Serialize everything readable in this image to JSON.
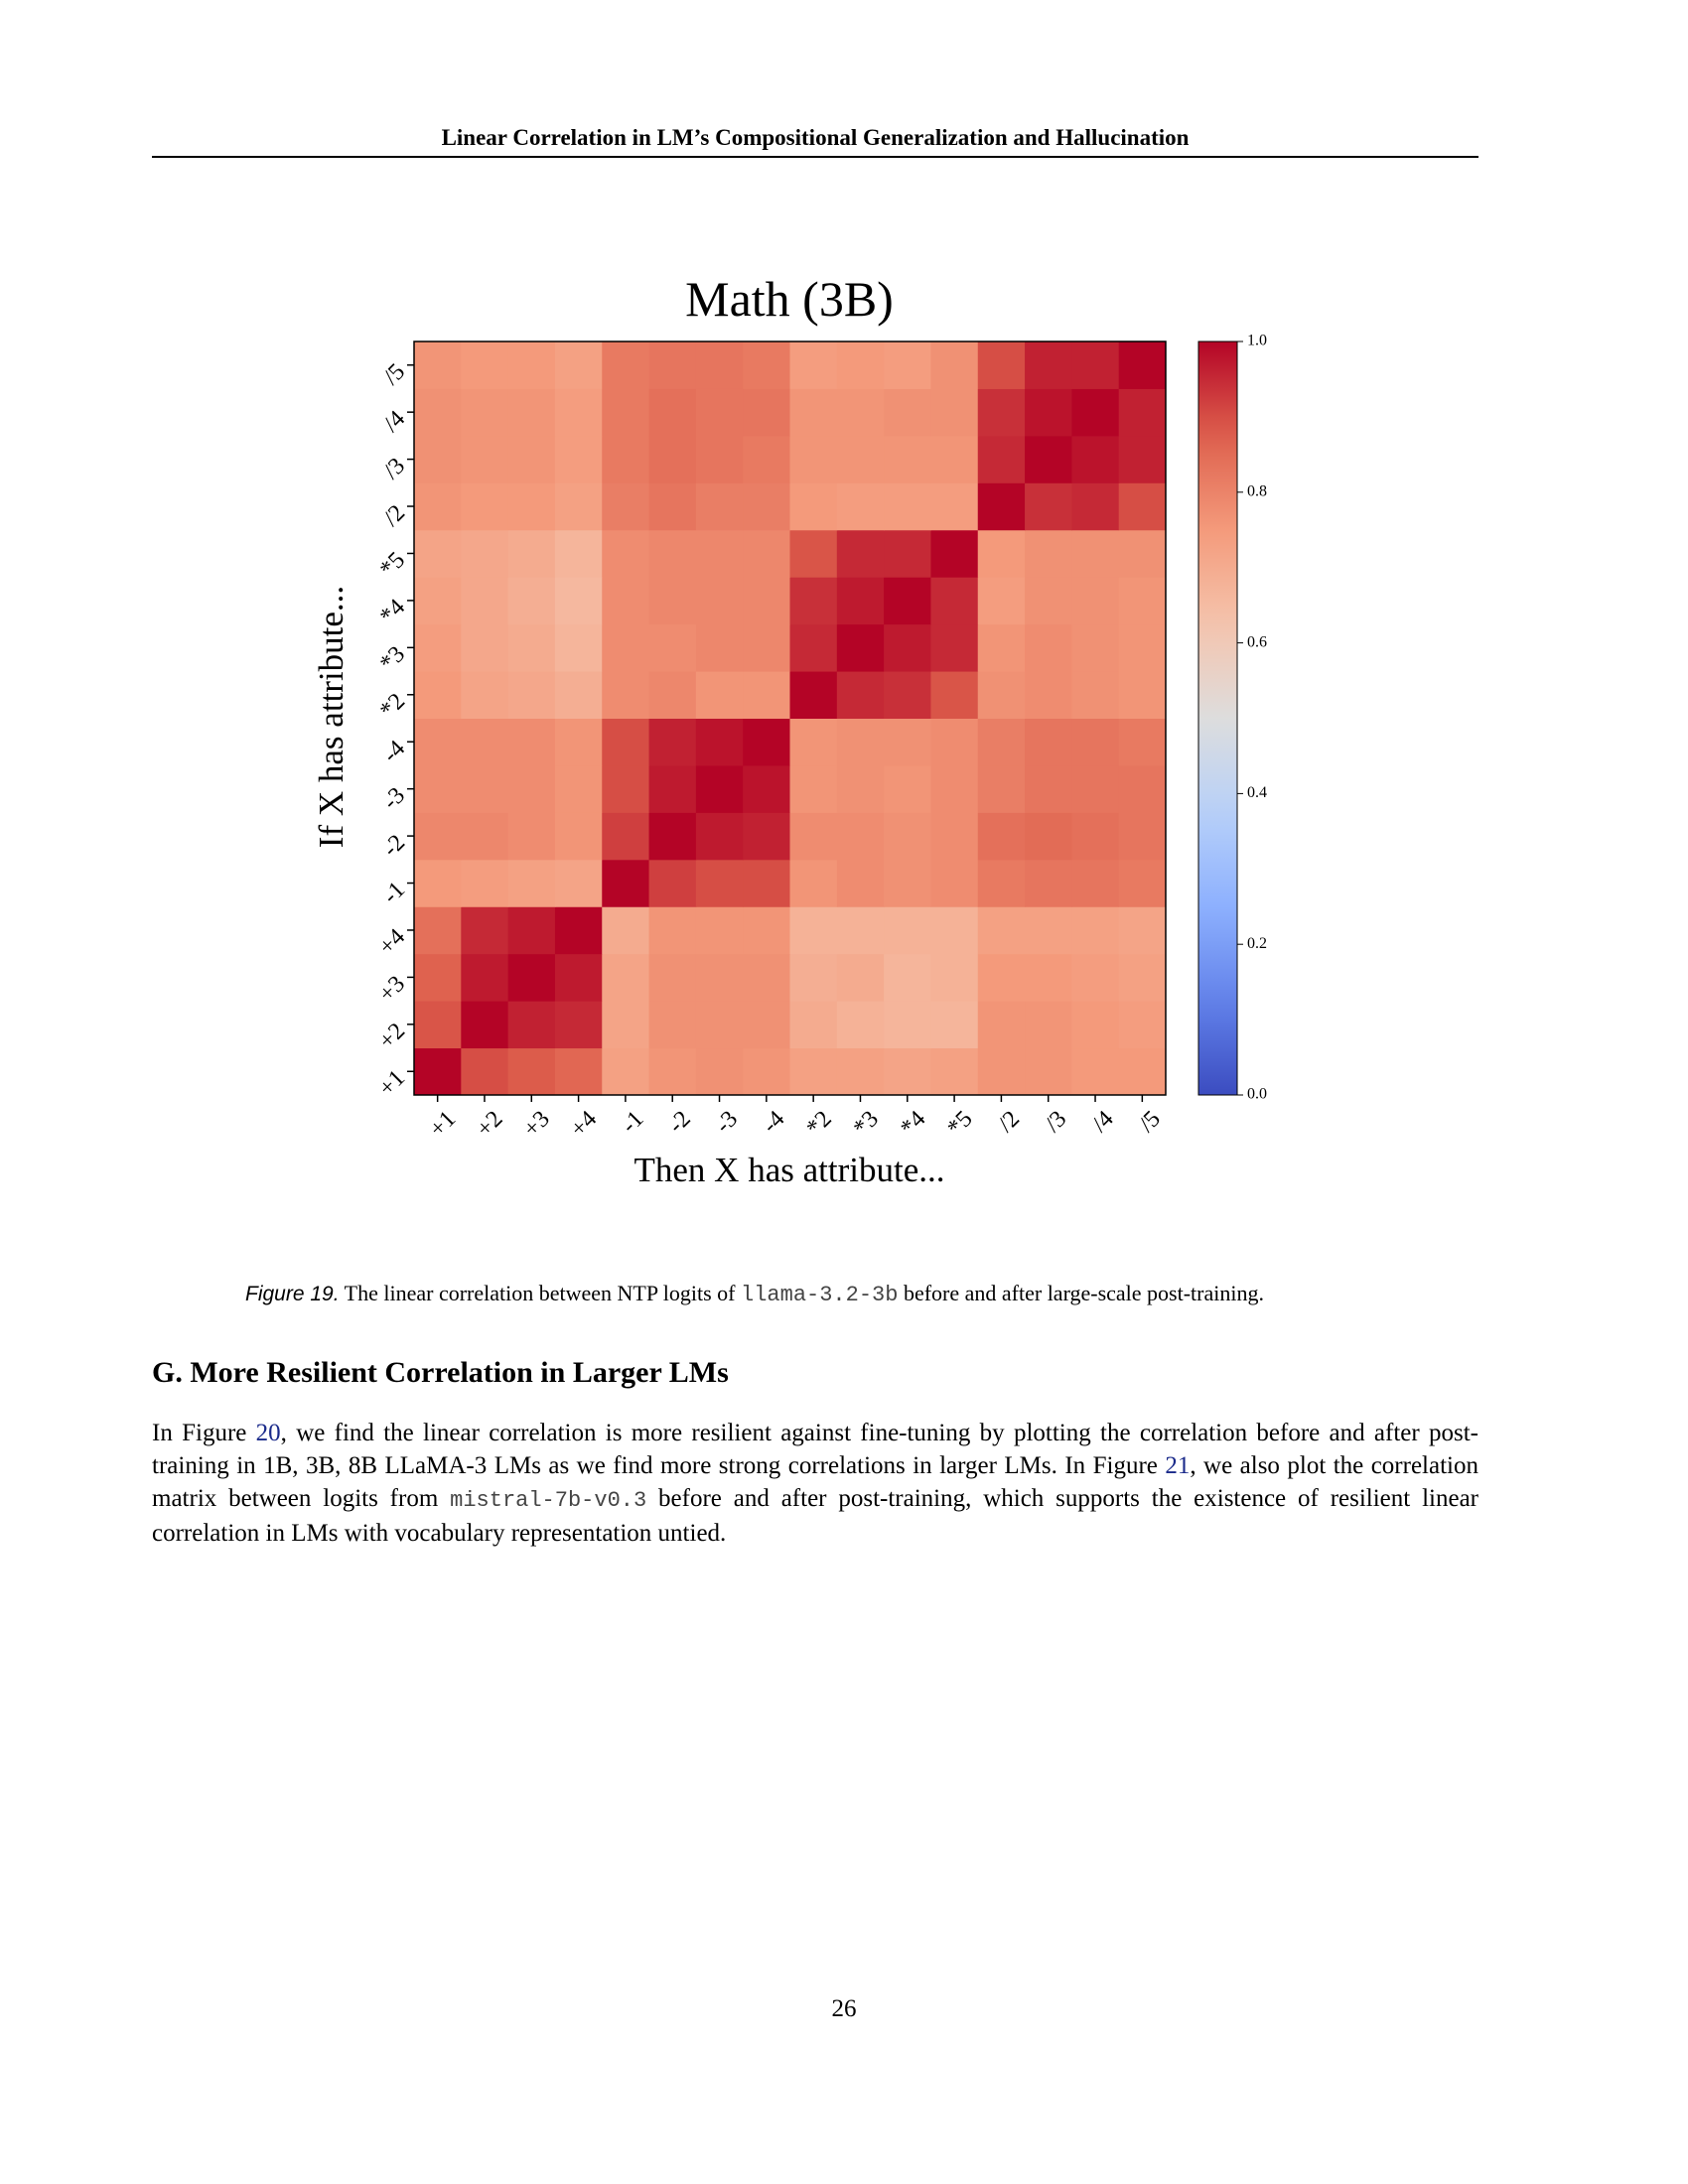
{
  "header": {
    "title": "Linear Correlation in LM’s Compositional Generalization and Hallucination"
  },
  "chart_data": {
    "type": "heatmap",
    "title": "Math (3B)",
    "x_label": "Then X has attribute...",
    "y_label": "If X has attribute...",
    "categories": [
      "+1",
      "+2",
      "+3",
      "+4",
      "-1",
      "-2",
      "-3",
      "-4",
      "*2",
      "*3",
      "*4",
      "*5",
      "/2",
      "/3",
      "/4",
      "/5"
    ],
    "y_categories": [
      "+1",
      "+2",
      "+3",
      "+4",
      "-1",
      "-2",
      "-3",
      "-4",
      "*2",
      "*3",
      "*4",
      "*5",
      "/2",
      "/3",
      "/4",
      "/5"
    ],
    "values": [
      [
        1.0,
        0.9,
        0.88,
        0.86,
        0.73,
        0.76,
        0.77,
        0.76,
        0.73,
        0.73,
        0.72,
        0.73,
        0.76,
        0.76,
        0.75,
        0.75
      ],
      [
        0.89,
        1.0,
        0.96,
        0.95,
        0.72,
        0.77,
        0.77,
        0.77,
        0.7,
        0.68,
        0.67,
        0.67,
        0.76,
        0.76,
        0.75,
        0.74
      ],
      [
        0.87,
        0.97,
        1.0,
        0.97,
        0.72,
        0.77,
        0.77,
        0.77,
        0.69,
        0.7,
        0.67,
        0.68,
        0.75,
        0.75,
        0.74,
        0.73
      ],
      [
        0.84,
        0.95,
        0.97,
        1.0,
        0.7,
        0.76,
        0.76,
        0.76,
        0.68,
        0.68,
        0.68,
        0.68,
        0.73,
        0.73,
        0.73,
        0.72
      ],
      [
        0.75,
        0.74,
        0.73,
        0.72,
        1.0,
        0.92,
        0.9,
        0.9,
        0.76,
        0.78,
        0.77,
        0.78,
        0.82,
        0.83,
        0.83,
        0.82
      ],
      [
        0.79,
        0.79,
        0.78,
        0.76,
        0.92,
        1.0,
        0.97,
        0.96,
        0.78,
        0.78,
        0.77,
        0.78,
        0.84,
        0.85,
        0.84,
        0.83
      ],
      [
        0.78,
        0.78,
        0.78,
        0.76,
        0.9,
        0.97,
        1.0,
        0.98,
        0.76,
        0.77,
        0.76,
        0.78,
        0.81,
        0.83,
        0.83,
        0.83
      ],
      [
        0.78,
        0.78,
        0.78,
        0.76,
        0.9,
        0.96,
        0.98,
        1.0,
        0.76,
        0.77,
        0.77,
        0.78,
        0.81,
        0.83,
        0.83,
        0.82
      ],
      [
        0.75,
        0.72,
        0.71,
        0.69,
        0.78,
        0.79,
        0.76,
        0.76,
        1.0,
        0.95,
        0.94,
        0.89,
        0.77,
        0.78,
        0.77,
        0.76
      ],
      [
        0.74,
        0.71,
        0.7,
        0.67,
        0.78,
        0.78,
        0.79,
        0.79,
        0.95,
        1.0,
        0.97,
        0.95,
        0.76,
        0.78,
        0.77,
        0.76
      ],
      [
        0.73,
        0.71,
        0.69,
        0.66,
        0.78,
        0.79,
        0.79,
        0.79,
        0.94,
        0.97,
        1.0,
        0.95,
        0.74,
        0.77,
        0.77,
        0.76
      ],
      [
        0.72,
        0.71,
        0.7,
        0.67,
        0.78,
        0.79,
        0.79,
        0.79,
        0.89,
        0.95,
        0.95,
        1.0,
        0.75,
        0.77,
        0.77,
        0.77
      ],
      [
        0.76,
        0.75,
        0.75,
        0.73,
        0.81,
        0.83,
        0.81,
        0.81,
        0.75,
        0.74,
        0.74,
        0.74,
        1.0,
        0.94,
        0.95,
        0.9
      ],
      [
        0.77,
        0.76,
        0.76,
        0.74,
        0.82,
        0.84,
        0.83,
        0.82,
        0.76,
        0.76,
        0.76,
        0.76,
        0.95,
        1.0,
        0.98,
        0.96
      ],
      [
        0.77,
        0.76,
        0.76,
        0.74,
        0.82,
        0.84,
        0.83,
        0.83,
        0.76,
        0.76,
        0.77,
        0.77,
        0.94,
        0.98,
        1.0,
        0.96
      ],
      [
        0.76,
        0.75,
        0.75,
        0.73,
        0.82,
        0.83,
        0.83,
        0.82,
        0.74,
        0.75,
        0.74,
        0.77,
        0.9,
        0.96,
        0.96,
        1.0
      ]
    ],
    "colormap": "coolwarm",
    "zlim": [
      0,
      1
    ],
    "zticks": [
      {
        "value": 0,
        "label": "0.0"
      },
      0.2,
      0.4,
      0.6,
      0.8,
      {
        "value": 1,
        "label": "1.0"
      }
    ]
  },
  "caption": {
    "label": "Figure 19.",
    "text_before": "The linear correlation between NTP logits of",
    "code": "llama-3.2-3b",
    "text_after": "before and after large-scale post-training."
  },
  "section": {
    "heading": "G. More Resilient Correlation in Larger LMs",
    "paragraph": [
      {
        "kind": "text",
        "text": "In Figure "
      },
      {
        "kind": "link",
        "text": "20"
      },
      {
        "kind": "text",
        "text": ", we find the linear correlation is more resilient against fine-tuning by plotting the correlation before and after post-training in 1B, 3B, 8B LLaMA-3 LMs as we find more strong correlations in larger LMs. In Figure "
      },
      {
        "kind": "link",
        "text": "21"
      },
      {
        "kind": "text",
        "text": ", we also plot the correlation matrix between logits from "
      },
      {
        "kind": "code",
        "text": "mistral-7b-v0.3"
      },
      {
        "kind": "text",
        "text": " before and after post-training, which supports the existence of resilient linear correlation in LMs with vocabulary representation untied."
      }
    ]
  },
  "page_number": "26"
}
